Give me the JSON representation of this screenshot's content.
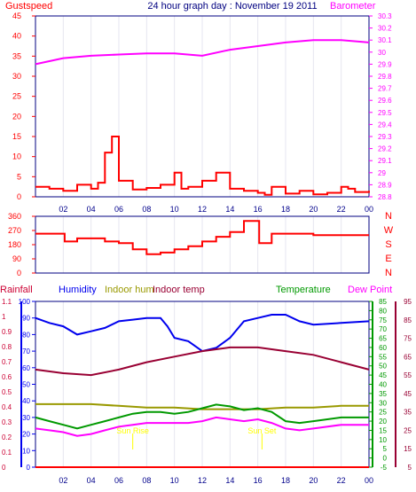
{
  "title": "24 hour graph day : November 19 2011",
  "x_ticks": [
    "02",
    "04",
    "06",
    "08",
    "10",
    "12",
    "14",
    "16",
    "18",
    "20",
    "22",
    "00"
  ],
  "colors": {
    "red": "#ff0000",
    "magenta": "#ff00ff",
    "navy": "#00008b",
    "blue": "#0000ee",
    "dark_red": "#990033",
    "olive": "#999900",
    "green": "#009900",
    "maroon": "#990033",
    "yellow": "#ffff00",
    "crimson": "#cc0033",
    "grid": "#000080"
  },
  "top": {
    "left_label": "Gustspeed",
    "right_label": "Barometer",
    "left_ticks": [
      "0",
      "5",
      "10",
      "15",
      "20",
      "25",
      "30",
      "35",
      "40",
      "45"
    ],
    "right_ticks": [
      "28.8",
      "28.9",
      "29",
      "29.1",
      "29.2",
      "29.3",
      "29.4",
      "29.5",
      "29.6",
      "29.7",
      "29.8",
      "29.9",
      "30",
      "30.1",
      "30.2",
      "30.3"
    ]
  },
  "wind": {
    "left_ticks": [
      "0",
      "90",
      "180",
      "270",
      "360"
    ],
    "compass": [
      "N",
      "W",
      "S",
      "E",
      "N"
    ]
  },
  "bottom": {
    "rainfall_label": "Rainfall",
    "humidity_label": "Humidity",
    "indoor_hum_label": "Indoor hum",
    "indoor_temp_label": "Indoor temp",
    "temperature_label": "Temperature",
    "dew_point_label": "Dew Point",
    "rain_ticks": [
      "0",
      "0.1",
      "0.2",
      "0.3",
      "0.4",
      "0.5",
      "0.6",
      "0.7",
      "0.8",
      "0.9",
      "1",
      "1.1"
    ],
    "humidity_ticks": [
      "0",
      "10",
      "20",
      "30",
      "40",
      "50",
      "60",
      "70",
      "80",
      "90",
      "100"
    ],
    "temp_ticks": [
      "-5",
      "0",
      "5",
      "10",
      "15",
      "20",
      "25",
      "30",
      "35",
      "40",
      "45",
      "50",
      "55",
      "60",
      "65",
      "70",
      "75",
      "80",
      "85"
    ],
    "dew_ticks": [
      "5",
      "15",
      "25",
      "35",
      "45",
      "55",
      "65",
      "75",
      "85",
      "95"
    ],
    "sunrise_label": "Sun Rise",
    "sunset_label": "Sun Set"
  },
  "chart_data": [
    {
      "type": "line",
      "title": "",
      "x_range_hours": [
        0,
        24
      ],
      "series": [
        {
          "name": "Gustspeed",
          "axis": "left",
          "ylim": [
            0,
            45
          ],
          "points": [
            [
              0,
              2.5
            ],
            [
              1,
              2
            ],
            [
              2,
              1.5
            ],
            [
              3,
              3
            ],
            [
              4,
              2
            ],
            [
              4.5,
              3.5
            ],
            [
              5,
              11
            ],
            [
              5.5,
              15
            ],
            [
              6,
              4
            ],
            [
              7,
              1.8
            ],
            [
              8,
              2.2
            ],
            [
              9,
              3
            ],
            [
              10,
              6
            ],
            [
              10.5,
              2
            ],
            [
              11,
              2.5
            ],
            [
              12,
              4
            ],
            [
              13,
              6
            ],
            [
              14,
              2
            ],
            [
              15,
              1.5
            ],
            [
              16,
              1
            ],
            [
              16.5,
              0.5
            ],
            [
              17,
              2.5
            ],
            [
              18,
              0.8
            ],
            [
              19,
              1.5
            ],
            [
              20,
              0.6
            ],
            [
              21,
              1
            ],
            [
              22,
              2.5
            ],
            [
              22.5,
              2
            ],
            [
              23,
              1.2
            ],
            [
              24,
              1.5
            ]
          ]
        },
        {
          "name": "Barometer",
          "axis": "right",
          "ylim": [
            28.8,
            30.3
          ],
          "points": [
            [
              0,
              29.9
            ],
            [
              2,
              29.95
            ],
            [
              4,
              29.97
            ],
            [
              6,
              29.98
            ],
            [
              8,
              29.99
            ],
            [
              10,
              29.99
            ],
            [
              12,
              29.97
            ],
            [
              14,
              30.02
            ],
            [
              16,
              30.05
            ],
            [
              18,
              30.08
            ],
            [
              20,
              30.1
            ],
            [
              22,
              30.1
            ],
            [
              24,
              30.08
            ]
          ]
        }
      ]
    },
    {
      "type": "line",
      "title": "",
      "series": [
        {
          "name": "Wind direction",
          "ylim": [
            0,
            360
          ],
          "points": [
            [
              0,
              250
            ],
            [
              2,
              250
            ],
            [
              2.1,
              200
            ],
            [
              3,
              220
            ],
            [
              4,
              220
            ],
            [
              5,
              200
            ],
            [
              6,
              190
            ],
            [
              7,
              150
            ],
            [
              8,
              120
            ],
            [
              9,
              130
            ],
            [
              10,
              150
            ],
            [
              11,
              170
            ],
            [
              12,
              200
            ],
            [
              13,
              230
            ],
            [
              14,
              260
            ],
            [
              15,
              330
            ],
            [
              16,
              330
            ],
            [
              16.1,
              190
            ],
            [
              17,
              250
            ],
            [
              19,
              250
            ],
            [
              20,
              240
            ],
            [
              22,
              240
            ],
            [
              24,
              240
            ]
          ]
        }
      ]
    },
    {
      "type": "line",
      "title": "",
      "series": [
        {
          "name": "Rainfall",
          "axis": "rain",
          "ylim": [
            0,
            1.1
          ],
          "points": [
            [
              0,
              0
            ],
            [
              24,
              0
            ]
          ]
        },
        {
          "name": "Humidity",
          "axis": "humidity",
          "ylim": [
            0,
            100
          ],
          "points": [
            [
              0,
              90
            ],
            [
              1,
              87
            ],
            [
              2,
              85
            ],
            [
              3,
              80
            ],
            [
              4,
              82
            ],
            [
              5,
              84
            ],
            [
              6,
              88
            ],
            [
              7,
              89
            ],
            [
              8,
              90
            ],
            [
              9,
              90
            ],
            [
              9.5,
              85
            ],
            [
              10,
              78
            ],
            [
              11,
              76
            ],
            [
              12,
              70
            ],
            [
              13,
              72
            ],
            [
              14,
              78
            ],
            [
              15,
              88
            ],
            [
              16,
              90
            ],
            [
              17,
              92
            ],
            [
              18,
              92
            ],
            [
              19,
              88
            ],
            [
              20,
              86
            ],
            [
              22,
              87
            ],
            [
              24,
              88
            ]
          ]
        },
        {
          "name": "Indoor hum",
          "axis": "humidity",
          "ylim": [
            0,
            100
          ],
          "points": [
            [
              0,
              38
            ],
            [
              2,
              38
            ],
            [
              4,
              38
            ],
            [
              6,
              37
            ],
            [
              8,
              36
            ],
            [
              10,
              36
            ],
            [
              12,
              35
            ],
            [
              14,
              35
            ],
            [
              16,
              35
            ],
            [
              18,
              36
            ],
            [
              20,
              36
            ],
            [
              22,
              37
            ],
            [
              24,
              37
            ]
          ]
        },
        {
          "name": "Indoor temp",
          "axis": "temp",
          "ylim": [
            -5,
            85
          ],
          "points": [
            [
              0,
              48
            ],
            [
              2,
              46
            ],
            [
              4,
              45
            ],
            [
              6,
              48
            ],
            [
              8,
              52
            ],
            [
              10,
              55
            ],
            [
              12,
              58
            ],
            [
              14,
              60
            ],
            [
              16,
              60
            ],
            [
              18,
              58
            ],
            [
              20,
              56
            ],
            [
              22,
              52
            ],
            [
              24,
              48
            ]
          ]
        },
        {
          "name": "Temperature",
          "axis": "temp",
          "ylim": [
            -5,
            85
          ],
          "points": [
            [
              0,
              22
            ],
            [
              1,
              20
            ],
            [
              2,
              18
            ],
            [
              3,
              16
            ],
            [
              4,
              18
            ],
            [
              5,
              20
            ],
            [
              6,
              22
            ],
            [
              7,
              24
            ],
            [
              8,
              25
            ],
            [
              9,
              25
            ],
            [
              10,
              24
            ],
            [
              11,
              25
            ],
            [
              12,
              27
            ],
            [
              13,
              29
            ],
            [
              14,
              28
            ],
            [
              15,
              26
            ],
            [
              16,
              27
            ],
            [
              17,
              25
            ],
            [
              18,
              20
            ],
            [
              19,
              19
            ],
            [
              20,
              20
            ],
            [
              22,
              22
            ],
            [
              24,
              22
            ]
          ]
        },
        {
          "name": "Dew Point",
          "axis": "temp",
          "ylim": [
            -5,
            85
          ],
          "points": [
            [
              0,
              16
            ],
            [
              1,
              15
            ],
            [
              2,
              14
            ],
            [
              3,
              12
            ],
            [
              4,
              13
            ],
            [
              5,
              15
            ],
            [
              6,
              17
            ],
            [
              7,
              18
            ],
            [
              8,
              19
            ],
            [
              9,
              19
            ],
            [
              10,
              19
            ],
            [
              11,
              19
            ],
            [
              12,
              20
            ],
            [
              13,
              22
            ],
            [
              14,
              21
            ],
            [
              15,
              20
            ],
            [
              16,
              21
            ],
            [
              17,
              19
            ],
            [
              18,
              16
            ],
            [
              19,
              15
            ],
            [
              20,
              16
            ],
            [
              22,
              18
            ],
            [
              24,
              18
            ]
          ]
        }
      ],
      "markers": [
        {
          "label": "Sun Rise",
          "hour": 7.0
        },
        {
          "label": "Sun Set",
          "hour": 16.3
        }
      ]
    }
  ]
}
